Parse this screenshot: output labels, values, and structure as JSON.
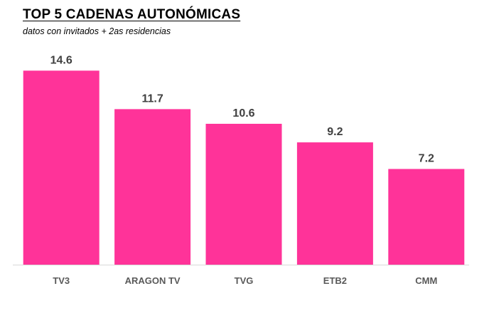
{
  "chart_data": {
    "type": "bar",
    "title": "TOP 5 CADENAS AUTONÓMICAS",
    "subtitle": "datos con invitados + 2as residencias",
    "categories": [
      "TV3",
      "ARAGON TV",
      "TVG",
      "ETB2",
      "CMM"
    ],
    "values": [
      14.6,
      11.7,
      10.6,
      9.2,
      7.2
    ],
    "value_labels": [
      "14.6",
      "11.7",
      "10.6",
      "9.2",
      "7.2"
    ],
    "xlabel": "",
    "ylabel": "",
    "ylim": [
      0,
      16
    ],
    "grid": false,
    "bar_color": "#FF3399",
    "axis_color": "#D9D9D9"
  }
}
